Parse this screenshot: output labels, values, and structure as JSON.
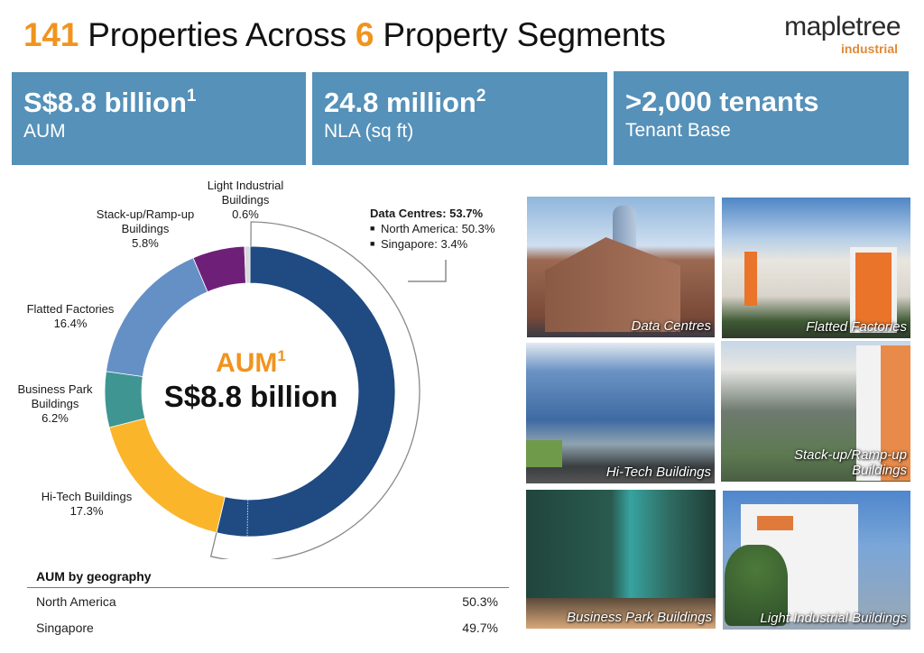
{
  "header": {
    "title_num1": "141",
    "title_text1": " Properties Across ",
    "title_num2": "6",
    "title_text2": " Property Segments"
  },
  "logo": {
    "main": "mapletree",
    "sub": "industrial"
  },
  "stats": [
    {
      "value": "S$8.8 billion",
      "sup": "1",
      "label": "AUM"
    },
    {
      "value": "24.8 million",
      "sup": "2",
      "label": "NLA (sq ft)"
    },
    {
      "value": ">2,000 tenants",
      "sup": "",
      "label": "Tenant Base"
    }
  ],
  "center": {
    "label": "AUM",
    "sup": "1",
    "value": "S$8.8 billion"
  },
  "callout": {
    "head": "Data Centres: 53.7%",
    "items": [
      "North America: 50.3%",
      "Singapore: 3.4%"
    ],
    "marker": "⌑"
  },
  "labels": {
    "light_industrial": [
      "Light Industrial",
      "Buildings",
      "0.6%"
    ],
    "stackup": [
      "Stack-up/Ramp-up",
      "Buildings",
      "5.8%"
    ],
    "flatted": [
      "Flatted Factories",
      "16.4%"
    ],
    "business_park": [
      "Business Park",
      "Buildings",
      "6.2%"
    ],
    "hitech": [
      "Hi-Tech Buildings",
      "17.3%"
    ]
  },
  "geography": {
    "title": "AUM by geography",
    "rows": [
      {
        "name": "North America",
        "value": "50.3%"
      },
      {
        "name": "Singapore",
        "value": "49.7%"
      }
    ]
  },
  "photos": [
    {
      "caption": "Data Centres"
    },
    {
      "caption": "Flatted Factories"
    },
    {
      "caption": "Hi-Tech Buildings"
    },
    {
      "caption": "Stack-up/Ramp-up\nBuildings"
    },
    {
      "caption": "Business Park Buildings"
    },
    {
      "caption": "Light Industrial Buildings"
    }
  ],
  "colors": {
    "accent_orange": "#f0941e",
    "stat_blue": "#5591b9"
  },
  "chart_data": {
    "type": "pie",
    "title": "AUM S$8.8 billion",
    "subtype": "donut",
    "start": "12 o'clock, clockwise",
    "categories": [
      "Data Centres",
      "Hi-Tech Buildings",
      "Business Park Buildings",
      "Flatted Factories",
      "Stack-up/Ramp-up Buildings",
      "Light Industrial Buildings"
    ],
    "values": [
      53.7,
      17.3,
      6.2,
      16.4,
      5.8,
      0.6
    ],
    "colors": [
      "#1f4a82",
      "#fbb52b",
      "#3f9592",
      "#6590c6",
      "#6e2079",
      "#d9d9d9"
    ],
    "sub_breakdown": {
      "Data Centres": [
        {
          "name": "North America",
          "value": 50.3
        },
        {
          "name": "Singapore",
          "value": 3.4
        }
      ]
    },
    "geography": [
      {
        "name": "North America",
        "value": 50.3
      },
      {
        "name": "Singapore",
        "value": 49.7
      }
    ]
  }
}
